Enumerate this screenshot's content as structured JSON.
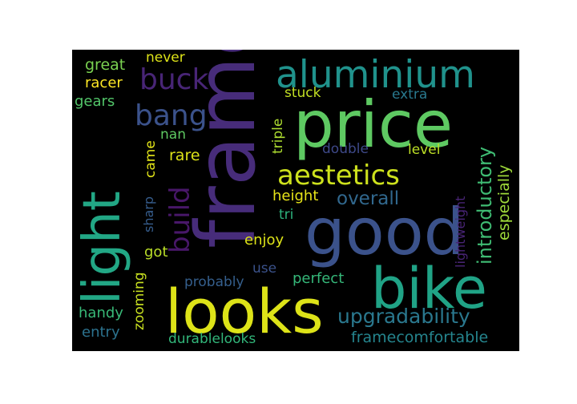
{
  "cloud": {
    "background": "#000000",
    "words": [
      {
        "text": "frame",
        "color": "#472c7a",
        "vertical": true
      },
      {
        "text": "price",
        "color": "#5ec962",
        "vertical": false
      },
      {
        "text": "good",
        "color": "#3b528b",
        "vertical": false
      },
      {
        "text": "looks",
        "color": "#dde318",
        "vertical": false
      },
      {
        "text": "bike",
        "color": "#20a386",
        "vertical": false
      },
      {
        "text": "light",
        "color": "#22a785",
        "vertical": true
      },
      {
        "text": "aluminium",
        "color": "#20928c",
        "vertical": false
      },
      {
        "text": "aestetics",
        "color": "#cde11d",
        "vertical": false
      },
      {
        "text": "bang",
        "color": "#3b528b",
        "vertical": false
      },
      {
        "text": "buck",
        "color": "#482576",
        "vertical": false
      },
      {
        "text": "build",
        "color": "#481769",
        "vertical": true
      },
      {
        "text": "upgradability",
        "color": "#2a788e",
        "vertical": false
      },
      {
        "text": "introductory",
        "color": "#3fbc73",
        "vertical": true
      },
      {
        "text": "overall",
        "color": "#31688e",
        "vertical": false
      },
      {
        "text": "framecomfortable",
        "color": "#25858e",
        "vertical": false
      },
      {
        "text": "especially",
        "color": "#9fda3a",
        "vertical": true
      },
      {
        "text": "height",
        "color": "#e7e419",
        "vertical": false
      },
      {
        "text": "lightweight",
        "color": "#482475",
        "vertical": true
      },
      {
        "text": "triple",
        "color": "#addc30",
        "vertical": true
      },
      {
        "text": "stuck",
        "color": "#c2df23",
        "vertical": false
      },
      {
        "text": "extra",
        "color": "#29798e",
        "vertical": false
      },
      {
        "text": "double",
        "color": "#3e4989",
        "vertical": false
      },
      {
        "text": "level",
        "color": "#bddf26",
        "vertical": false
      },
      {
        "text": "enjoy",
        "color": "#dde318",
        "vertical": false
      },
      {
        "text": "tri",
        "color": "#2db27d",
        "vertical": false
      },
      {
        "text": "perfect",
        "color": "#35b779",
        "vertical": false
      },
      {
        "text": "probably",
        "color": "#355f8d",
        "vertical": false
      },
      {
        "text": "use",
        "color": "#3b528b",
        "vertical": false
      },
      {
        "text": "zooming",
        "color": "#c8e020",
        "vertical": true
      },
      {
        "text": "durablelooks",
        "color": "#32b67a",
        "vertical": false
      },
      {
        "text": "handy",
        "color": "#38b977",
        "vertical": false
      },
      {
        "text": "entry",
        "color": "#2c728e",
        "vertical": false
      },
      {
        "text": "got",
        "color": "#bade28",
        "vertical": false
      },
      {
        "text": "sharp",
        "color": "#365d8d",
        "vertical": true
      },
      {
        "text": "came",
        "color": "#e2e418",
        "vertical": true
      },
      {
        "text": "rare",
        "color": "#dde318",
        "vertical": false
      },
      {
        "text": "nan",
        "color": "#5ec962",
        "vertical": false
      },
      {
        "text": "great",
        "color": "#7ad151",
        "vertical": false
      },
      {
        "text": "never",
        "color": "#dde318",
        "vertical": false
      },
      {
        "text": "racer",
        "color": "#fde725",
        "vertical": false
      },
      {
        "text": "gears",
        "color": "#52c569",
        "vertical": false
      }
    ]
  }
}
